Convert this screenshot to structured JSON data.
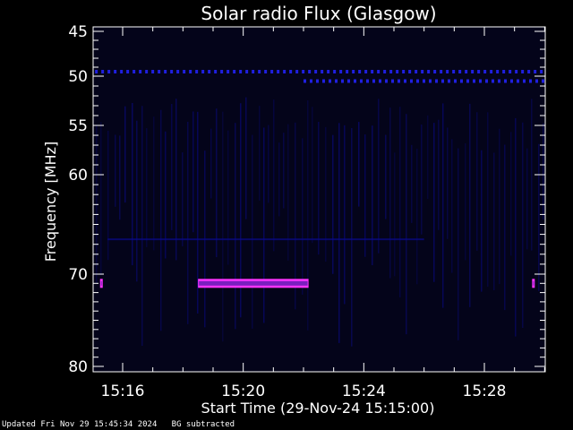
{
  "chart_data": {
    "type": "heatmap",
    "title": "Solar radio Flux (Glasgow)",
    "xlabel": "Start Time (29-Nov-24 15:15:00)",
    "ylabel": "Frequency [MHz]",
    "x_ticks": [
      "15:16",
      "15:20",
      "15:24",
      "15:28"
    ],
    "y_ticks": [
      45,
      50,
      55,
      60,
      70,
      80
    ],
    "xlim_minutes_after_start": [
      0,
      15
    ],
    "ylim_mhz": [
      45,
      80
    ],
    "background_color": "#04041a",
    "colors": {
      "weak": "#0a0a8a",
      "medium": "#1f1fe0",
      "strong": "#7a1fbf",
      "edge": "#ff33ff"
    },
    "features": [
      {
        "name": "burst band",
        "freq_mhz": 71,
        "start": "15:18:30",
        "end": "15:22:10",
        "intensity": "strong"
      },
      {
        "name": "dot",
        "freq_mhz": 71,
        "start": "15:15:15",
        "end": "15:15:20",
        "intensity": "strong"
      },
      {
        "name": "dot",
        "freq_mhz": 71,
        "start": "15:29:35",
        "end": "15:29:40",
        "intensity": "strong"
      },
      {
        "name": "dotted line",
        "freq_mhz": 49.5,
        "start": "15:15:05",
        "end": "15:30:00",
        "intensity": "medium"
      },
      {
        "name": "dotted line",
        "freq_mhz": 50.5,
        "start": "15:22:00",
        "end": "15:30:00",
        "intensity": "medium"
      },
      {
        "name": "faint line",
        "freq_mhz": 66.5,
        "start": "15:15:30",
        "end": "15:26:00",
        "intensity": "weak"
      }
    ]
  },
  "footer": {
    "updated": "Updated Fri Nov 29 15:45:34 2024",
    "bg_note": "BG subtracted"
  }
}
